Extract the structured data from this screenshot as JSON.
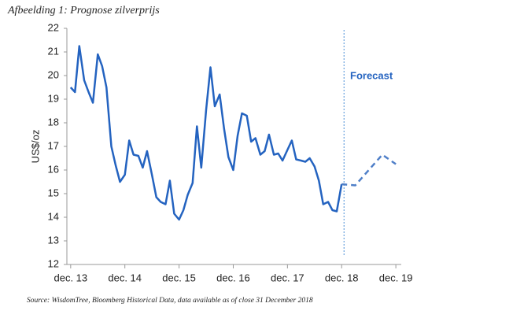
{
  "chart_data": {
    "type": "line",
    "title": "Afbeelding 1: Prognose zilverprijs",
    "ylabel": "US$/oz",
    "annotation": "Forecast",
    "source": "Source: WisdomTree, Bloomberg Historical Data, data available as of close 31 December 2018",
    "xlim": [
      2013.85,
      2020.02
    ],
    "xticks": [
      {
        "value": 2013.92,
        "label": "dec. 13"
      },
      {
        "value": 2014.92,
        "label": "dec. 14"
      },
      {
        "value": 2015.92,
        "label": "dec. 15"
      },
      {
        "value": 2016.92,
        "label": "dec. 16"
      },
      {
        "value": 2017.92,
        "label": "dec. 17"
      },
      {
        "value": 2018.92,
        "label": "dec. 18"
      },
      {
        "value": 2019.92,
        "label": "dec. 19"
      }
    ],
    "ylim": [
      12,
      22
    ],
    "yticks": [
      12,
      13,
      14,
      15,
      16,
      17,
      18,
      19,
      20,
      21,
      22
    ],
    "series": [
      {
        "color": "#2463c0",
        "dashed": false,
        "x": [
          2013.92,
          2014.0,
          2014.08,
          2014.17,
          2014.25,
          2014.33,
          2014.42,
          2014.5,
          2014.58,
          2014.67,
          2014.75,
          2014.83,
          2014.92,
          2015.0,
          2015.08,
          2015.17,
          2015.25,
          2015.33,
          2015.42,
          2015.5,
          2015.58,
          2015.67,
          2015.75,
          2015.83,
          2015.92,
          2016.0,
          2016.08,
          2016.17,
          2016.25,
          2016.33,
          2016.42,
          2016.5,
          2016.58,
          2016.67,
          2016.75,
          2016.83,
          2016.92,
          2017.0,
          2017.08,
          2017.17,
          2017.25,
          2017.33,
          2017.42,
          2017.5,
          2017.58,
          2017.67,
          2017.75,
          2017.83,
          2017.92,
          2018.0,
          2018.08,
          2018.17,
          2018.25,
          2018.33,
          2018.42,
          2018.5,
          2018.58,
          2018.67,
          2018.75,
          2018.83,
          2018.92
        ],
        "values": [
          19.5,
          19.3,
          21.25,
          19.8,
          19.3,
          18.85,
          20.9,
          20.4,
          19.5,
          17.0,
          16.2,
          15.5,
          15.8,
          17.25,
          16.65,
          16.6,
          16.1,
          16.8,
          15.8,
          14.85,
          14.65,
          14.55,
          15.55,
          14.15,
          13.9,
          14.3,
          14.95,
          15.45,
          17.85,
          16.1,
          18.55,
          20.35,
          18.7,
          19.2,
          17.75,
          16.55,
          16.0,
          17.45,
          18.4,
          18.3,
          17.2,
          17.35,
          16.65,
          16.8,
          17.5,
          16.65,
          16.7,
          16.4,
          16.85,
          17.25,
          16.45,
          16.4,
          16.35,
          16.5,
          16.15,
          15.55,
          14.55,
          14.65,
          14.3,
          14.25,
          15.4
        ]
      },
      {
        "color": "#4f7fc8",
        "dashed": true,
        "x": [
          2018.92,
          2019.17,
          2019.67,
          2019.92
        ],
        "values": [
          15.4,
          15.35,
          16.65,
          16.25
        ]
      }
    ]
  }
}
